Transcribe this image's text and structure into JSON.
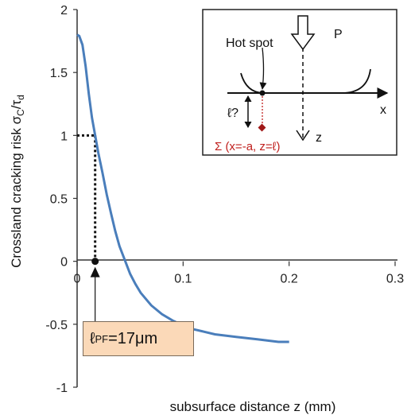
{
  "chart_data": {
    "type": "line",
    "xlabel": "subsurface distance z (mm)",
    "ylabel_main": "Crossland cracking risk σ",
    "ylabel_sub_c": "C",
    "ylabel_slash": "/τ",
    "ylabel_sub_d": "d",
    "xlim": [
      0,
      0.3
    ],
    "ylim": [
      -1,
      2
    ],
    "x_ticks": [
      "0",
      "0.1",
      "0.2",
      "0.3"
    ],
    "x_tick_values": [
      0,
      0.1,
      0.2,
      0.3
    ],
    "y_ticks": [
      "2",
      "1.5",
      "1",
      "0.5",
      "0",
      "-0.5",
      "-1"
    ],
    "y_tick_values": [
      2,
      1.5,
      1,
      0.5,
      0,
      -0.5,
      -1
    ],
    "grid": false,
    "series": [
      {
        "color": "#4a7ebb",
        "x": [
          0,
          0.002,
          0.005,
          0.008,
          0.011,
          0.014,
          0.017,
          0.02,
          0.024,
          0.028,
          0.032,
          0.036,
          0.04,
          0.045,
          0.05,
          0.055,
          0.06,
          0.07,
          0.08,
          0.09,
          0.1,
          0.11,
          0.12,
          0.13,
          0.14,
          0.15,
          0.16,
          0.17,
          0.18,
          0.19,
          0.2
        ],
        "y": [
          1.8,
          1.79,
          1.72,
          1.55,
          1.33,
          1.14,
          1.0,
          0.86,
          0.7,
          0.53,
          0.38,
          0.24,
          0.12,
          0.01,
          -0.1,
          -0.18,
          -0.25,
          -0.35,
          -0.42,
          -0.47,
          -0.51,
          -0.54,
          -0.56,
          -0.58,
          -0.59,
          -0.6,
          -0.61,
          -0.62,
          -0.63,
          -0.64,
          -0.64
        ]
      }
    ],
    "marker_point": {
      "x": 0.017,
      "y": 0
    },
    "guide_point": {
      "x": 0.017,
      "y": 1
    }
  },
  "annotation": {
    "lpf_symbol": "ℓ",
    "lpf_sub": "PF",
    "lpf_value": "=17μm"
  },
  "inset": {
    "hot_spot": "Hot spot",
    "load": "P",
    "x_axis": "x",
    "z_axis": "z",
    "depth_label": "ℓ?",
    "sigma_label": "Σ (x=-a, z=ℓ)",
    "red_color": "#c0201e"
  }
}
